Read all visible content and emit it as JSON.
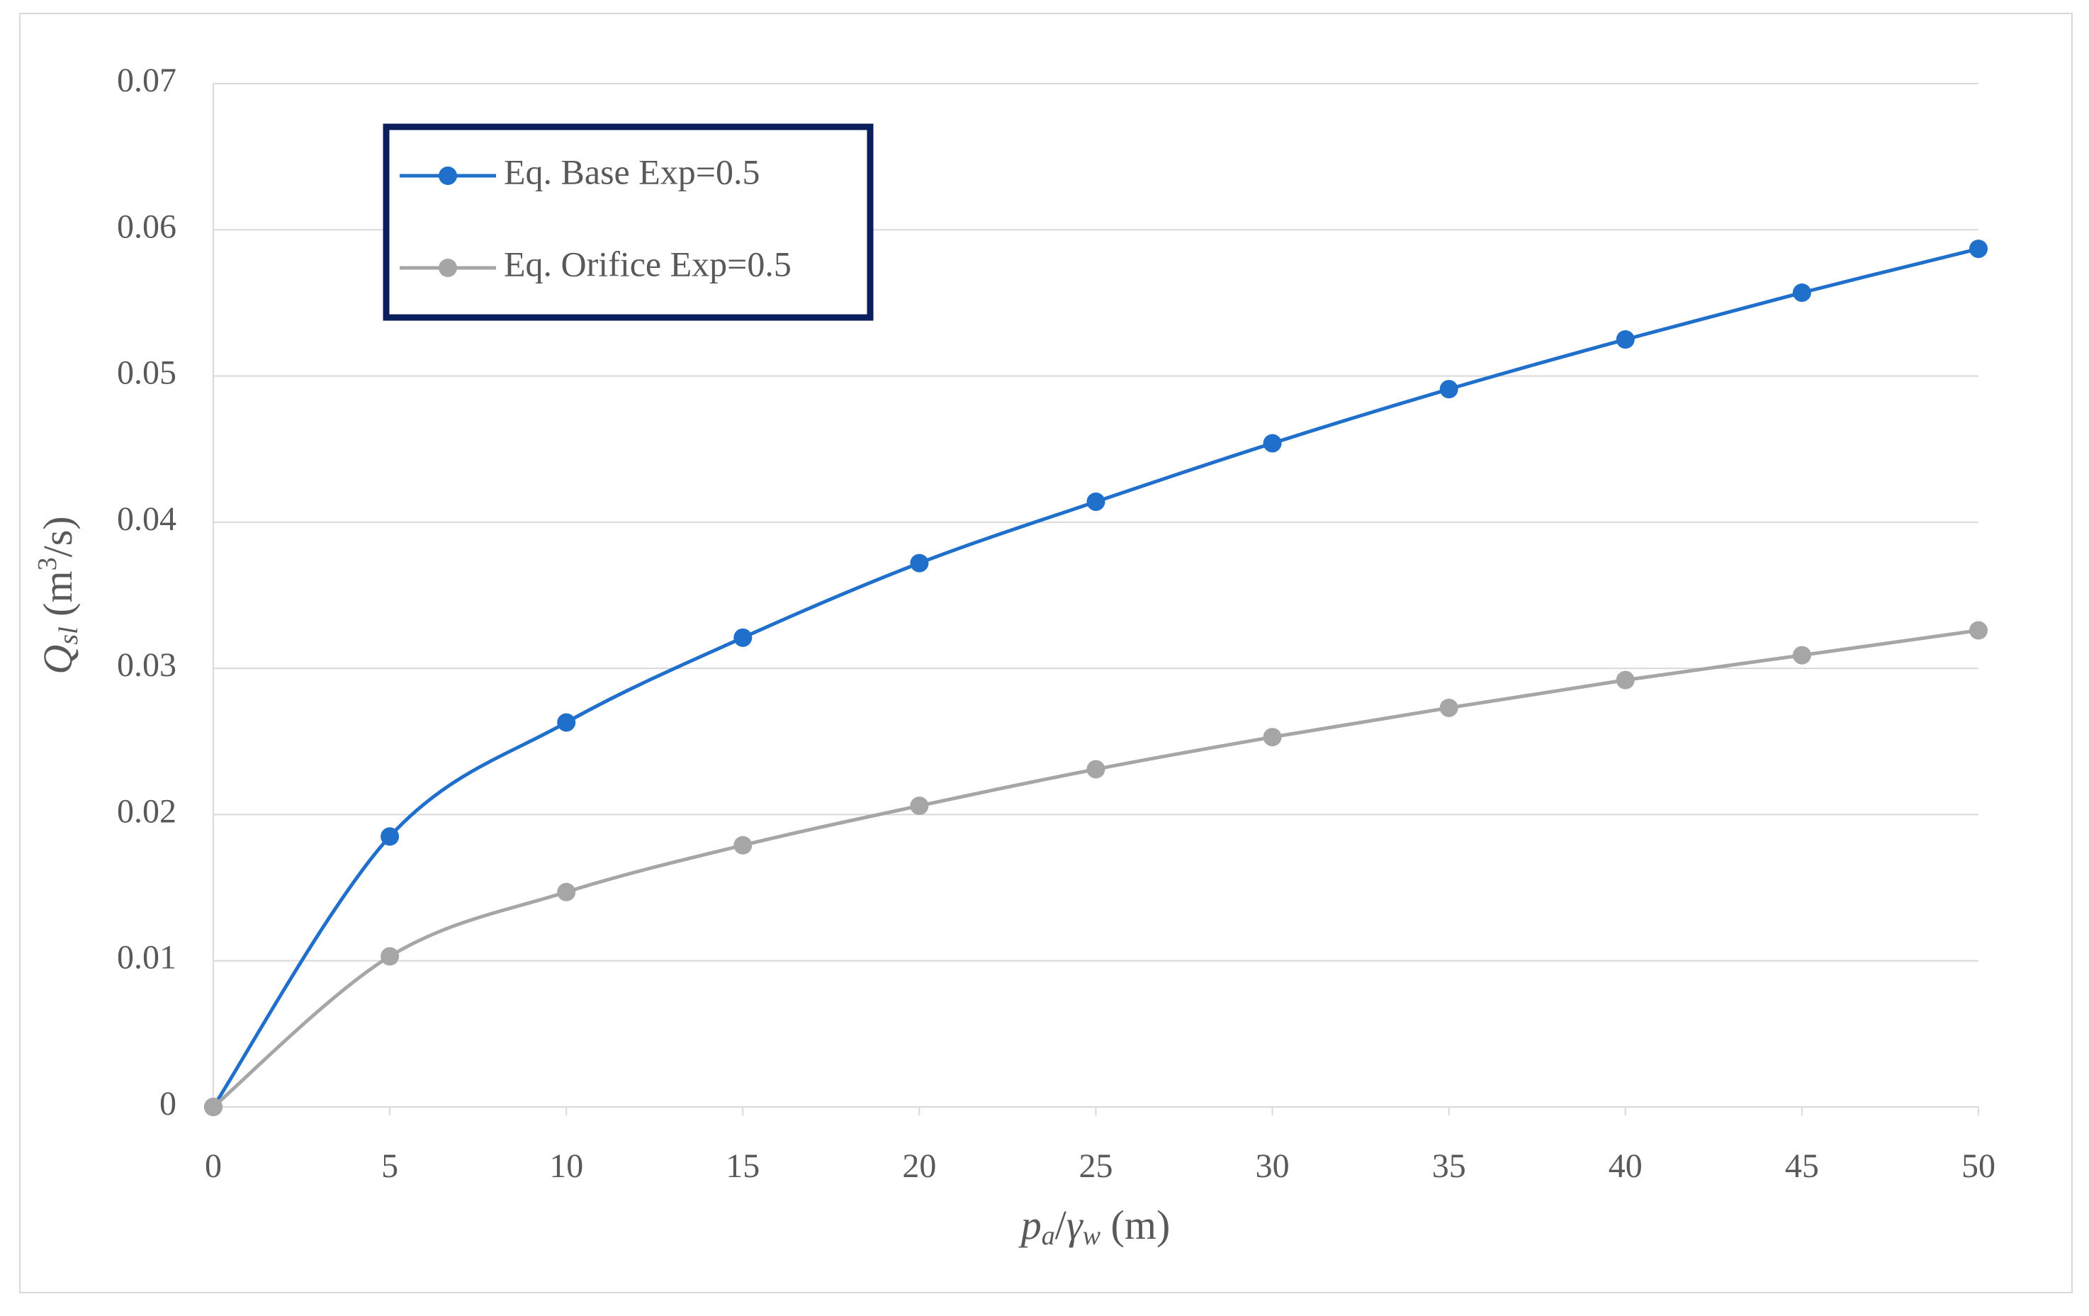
{
  "chart_data": {
    "type": "line",
    "x_label": [
      "p",
      "a",
      "/",
      "γ",
      "w",
      " (m)"
    ],
    "y_label": [
      "Q",
      "sl",
      " (m",
      "3",
      "/s)"
    ],
    "x": [
      0,
      5,
      10,
      15,
      20,
      25,
      30,
      35,
      40,
      45,
      50
    ],
    "series": [
      {
        "name": "Eq. Base Exp=0.5",
        "color": "#1f6fcb",
        "values": [
          0,
          0.0185,
          0.0263,
          0.0321,
          0.0372,
          0.0414,
          0.0454,
          0.0491,
          0.0525,
          0.0557,
          0.0587
        ]
      },
      {
        "name": "Eq. Orifice Exp=0.5",
        "color": "#a6a6a6",
        "values": [
          0,
          0.0103,
          0.0147,
          0.0179,
          0.0206,
          0.0231,
          0.0253,
          0.0273,
          0.0292,
          0.0309,
          0.0326
        ]
      }
    ],
    "xlim": [
      0,
      50
    ],
    "xticks": [
      0,
      5,
      10,
      15,
      20,
      25,
      30,
      35,
      40,
      45,
      50
    ],
    "ylim": [
      0,
      0.07
    ],
    "yticks": [
      0,
      0.01,
      0.02,
      0.03,
      0.04,
      0.05,
      0.06,
      0.07
    ],
    "grid": true,
    "smooth": true,
    "legend": "upper left",
    "legend_border_color": "#0b1f5c"
  }
}
